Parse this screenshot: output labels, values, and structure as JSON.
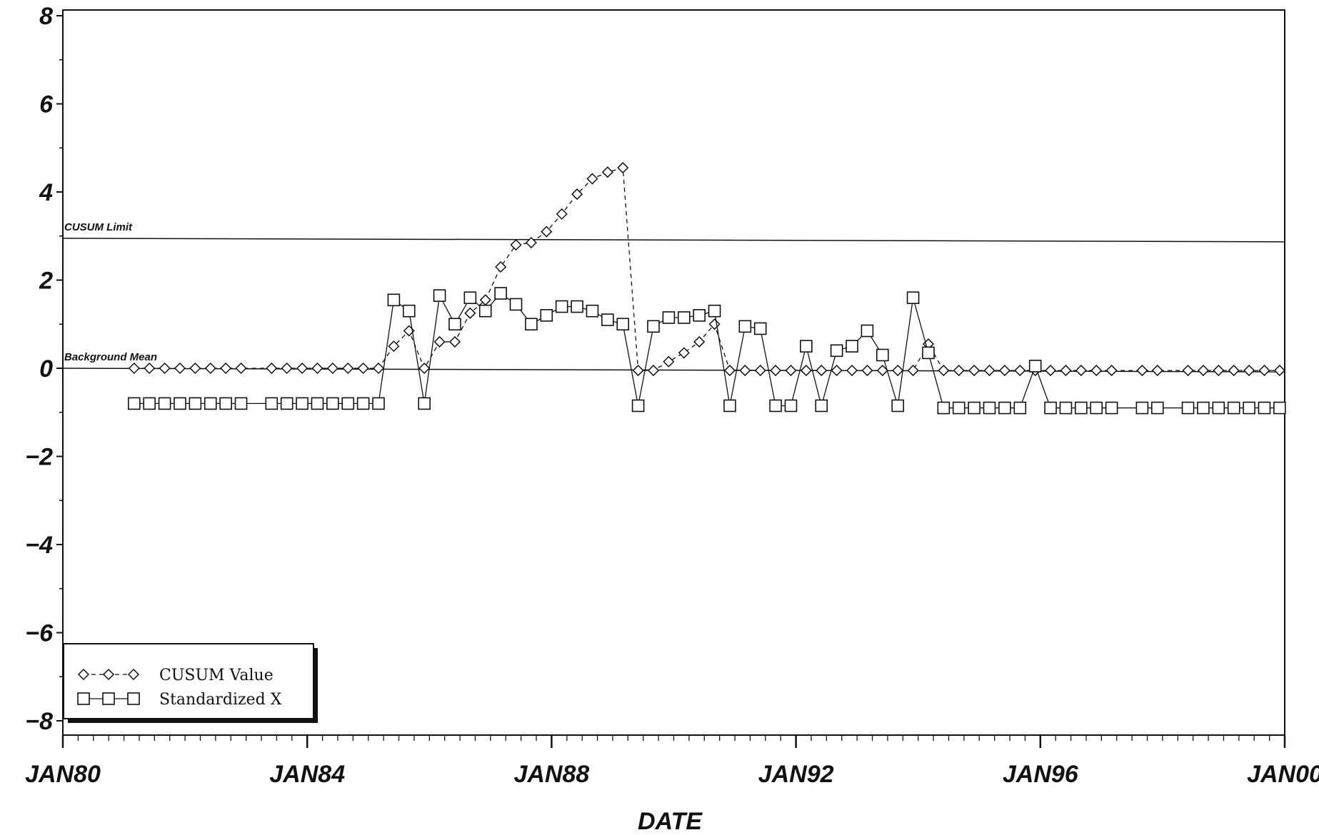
{
  "chart_data": {
    "type": "line",
    "title": "",
    "xlabel": "DATE",
    "ylabel": "",
    "xlim": [
      "1980-01",
      "2000-01"
    ],
    "ylim": [
      -8,
      8
    ],
    "x_ticks": [
      "JAN80",
      "JAN84",
      "JAN88",
      "JAN92",
      "JAN96",
      "JAN00"
    ],
    "y_ticks": [
      "8",
      "6",
      "4",
      "2",
      "0",
      "−2",
      "−4",
      "−6",
      "−8"
    ],
    "grid": false,
    "legend_position": "bottom-left",
    "reference_lines": [
      {
        "label": "CUSUM Limit",
        "value": 2.95
      },
      {
        "label": "Background Mean",
        "value": 0
      }
    ],
    "x": [
      "1981-03",
      "1981-06",
      "1981-09",
      "1981-12",
      "1982-03",
      "1982-06",
      "1982-09",
      "1982-12",
      "1983-06",
      "1983-09",
      "1983-12",
      "1984-03",
      "1984-06",
      "1984-09",
      "1984-12",
      "1985-03",
      "1985-06",
      "1985-09",
      "1985-12",
      "1986-03",
      "1986-06",
      "1986-09",
      "1986-12",
      "1987-03",
      "1987-06",
      "1987-09",
      "1987-12",
      "1988-03",
      "1988-06",
      "1988-09",
      "1988-12",
      "1989-03",
      "1989-06",
      "1989-09",
      "1989-12",
      "1990-03",
      "1990-06",
      "1990-09",
      "1990-12",
      "1991-03",
      "1991-06",
      "1991-09",
      "1991-12",
      "1992-03",
      "1992-06",
      "1992-09",
      "1992-12",
      "1993-03",
      "1993-06",
      "1993-09",
      "1993-12",
      "1994-03",
      "1994-06",
      "1994-09",
      "1994-12",
      "1995-03",
      "1995-06",
      "1995-09",
      "1995-12",
      "1996-03",
      "1996-06",
      "1996-09",
      "1996-12",
      "1997-03",
      "1997-09",
      "1997-12",
      "1998-06",
      "1998-09",
      "1998-12",
      "1999-03",
      "1999-06",
      "1999-09",
      "1999-12"
    ],
    "series": [
      {
        "name": "CUSUM Value",
        "line_style": "dashed",
        "marker": "diamond",
        "values": [
          0,
          0,
          0,
          0,
          0,
          0,
          0,
          0,
          0,
          0,
          0,
          0,
          0,
          0,
          0,
          0,
          0.5,
          0.85,
          0,
          0.6,
          0.6,
          1.25,
          1.55,
          2.3,
          2.8,
          2.85,
          3.1,
          3.5,
          3.95,
          4.3,
          4.45,
          4.55,
          -0.05,
          -0.05,
          0.15,
          0.35,
          0.6,
          1.0,
          -0.05,
          -0.05,
          -0.05,
          -0.05,
          -0.05,
          -0.05,
          -0.05,
          -0.05,
          -0.05,
          -0.05,
          -0.05,
          -0.05,
          -0.05,
          0.55,
          -0.05,
          -0.05,
          -0.05,
          -0.05,
          -0.05,
          -0.05,
          -0.05,
          -0.05,
          -0.05,
          -0.05,
          -0.05,
          -0.05,
          -0.05,
          -0.05,
          -0.05,
          -0.05,
          -0.05,
          -0.05,
          -0.05,
          -0.05,
          -0.05
        ]
      },
      {
        "name": "Standardized X",
        "line_style": "solid",
        "marker": "square",
        "values": [
          -0.8,
          -0.8,
          -0.8,
          -0.8,
          -0.8,
          -0.8,
          -0.8,
          -0.8,
          -0.8,
          -0.8,
          -0.8,
          -0.8,
          -0.8,
          -0.8,
          -0.8,
          -0.8,
          1.55,
          1.3,
          -0.8,
          1.65,
          1.0,
          1.6,
          1.3,
          1.7,
          1.45,
          1.0,
          1.2,
          1.4,
          1.4,
          1.3,
          1.1,
          1.0,
          -0.85,
          0.95,
          1.15,
          1.15,
          1.2,
          1.3,
          -0.85,
          0.95,
          0.9,
          -0.85,
          -0.85,
          0.5,
          -0.85,
          0.4,
          0.5,
          0.85,
          0.3,
          -0.85,
          1.6,
          0.35,
          -0.9,
          -0.9,
          -0.9,
          -0.9,
          -0.9,
          -0.9,
          0.05,
          -0.9,
          -0.9,
          -0.9,
          -0.9,
          -0.9,
          -0.9,
          -0.9,
          -0.9,
          -0.9,
          -0.9,
          -0.9,
          -0.9,
          -0.9,
          -0.9
        ]
      }
    ]
  }
}
